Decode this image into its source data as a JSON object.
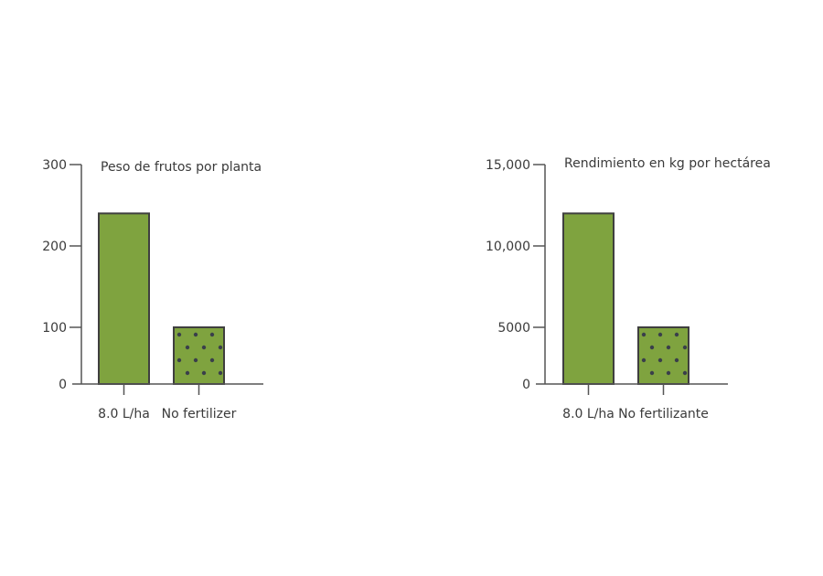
{
  "chart_data": [
    {
      "type": "bar",
      "title": "Peso de frutos por planta",
      "categories": [
        "8.0 L/ha",
        "No fertilizer"
      ],
      "values": [
        240,
        100
      ],
      "yticks": [
        0,
        100,
        200,
        300
      ],
      "ytick_labels": [
        "0",
        "100",
        "200",
        "300"
      ],
      "ylim": [
        0,
        300
      ],
      "patterns": [
        "solid",
        "dots"
      ],
      "grid": false
    },
    {
      "type": "bar",
      "title": "Rendimiento en kg por hectárea",
      "categories": [
        "8.0 L/ha",
        "No fertilizante"
      ],
      "values": [
        12000,
        5000
      ],
      "yticks": [
        0,
        5000,
        10000,
        15000
      ],
      "ytick_labels": [
        "0",
        "5000",
        "10,000",
        "15,000"
      ],
      "ylim": [
        0,
        15000
      ],
      "patterns": [
        "solid",
        "dots"
      ],
      "grid": false
    }
  ],
  "colors": {
    "bar": "#7fa33f",
    "outline": "#3f3f3f",
    "dots": "#3a3f4a",
    "axis": "#555555"
  }
}
